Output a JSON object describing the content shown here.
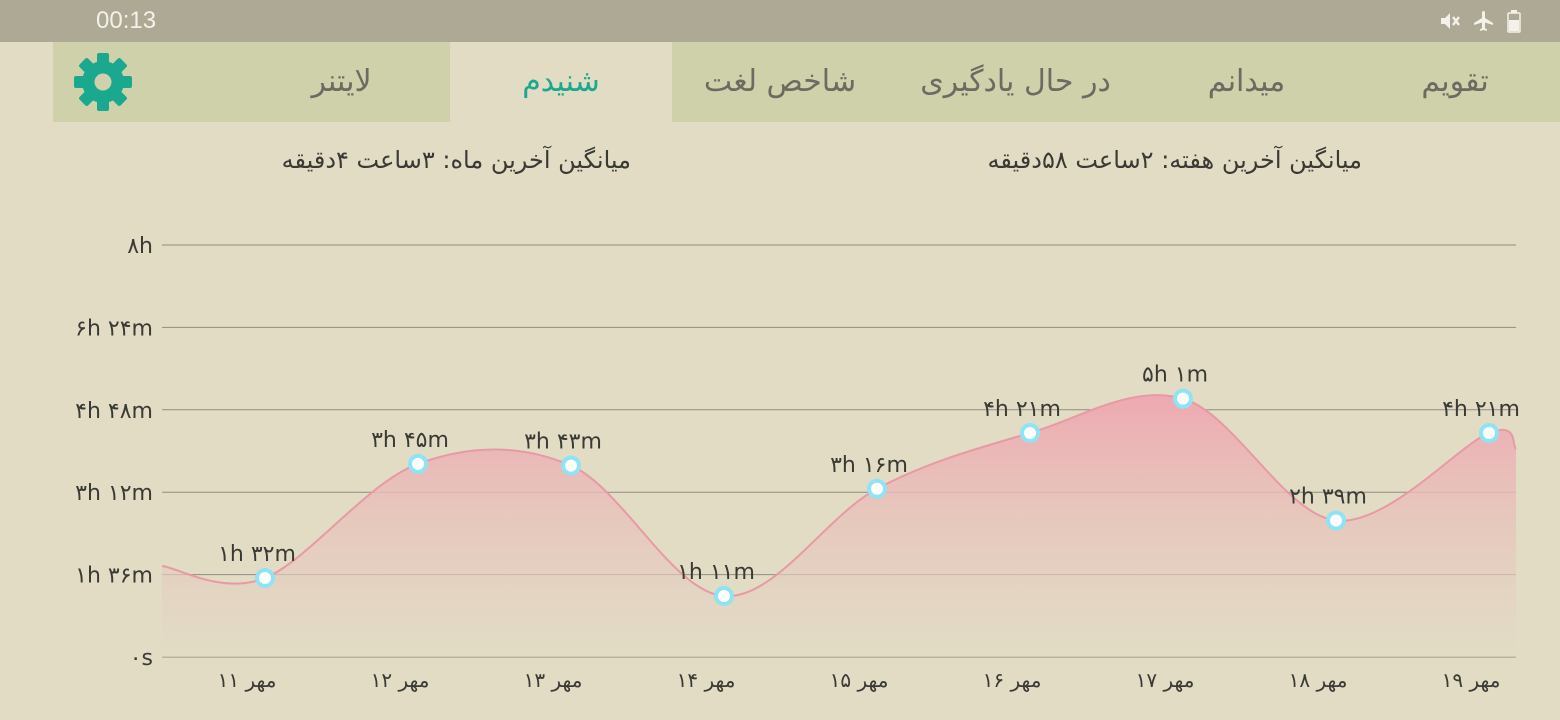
{
  "status_bar": {
    "time": "00:13",
    "icons": [
      "mute-icon",
      "airplane-mode-icon",
      "battery-icon"
    ]
  },
  "tabs": [
    {
      "label": "تقویم",
      "active": false
    },
    {
      "label": "میدانم",
      "active": false
    },
    {
      "label": "در حال یادگیری",
      "active": false
    },
    {
      "label": "شاخص لغت",
      "active": false
    },
    {
      "label": "شنیدم",
      "active": true
    },
    {
      "label": "لایتنر",
      "active": false
    }
  ],
  "settings_icon": "gear-icon",
  "colors": {
    "accent": "#1aa88e",
    "tab_bar": "#cfd1aa",
    "background": "#e2dcc5",
    "area_fill": "#eea9b1",
    "point": "#8fe3f5"
  },
  "averages": {
    "week": "میانگین آخرین هفته: ۲ساعت ۵۸دقیقه",
    "month": "میانگین آخرین ماه: ۳ساعت ۴دقیقه"
  },
  "chart_data": {
    "type": "area",
    "y_unit": "minutes",
    "ylim": [
      0,
      480
    ],
    "y_ticks": [
      {
        "value": 0,
        "label": "۰s"
      },
      {
        "value": 96,
        "label": "۱h ۳۶m"
      },
      {
        "value": 192,
        "label": "۳h ۱۲m"
      },
      {
        "value": 288,
        "label": "۴h ۴۸m"
      },
      {
        "value": 384,
        "label": "۶h ۲۴m"
      },
      {
        "value": 480,
        "label": "۸h"
      }
    ],
    "categories": [
      "۱۱ مهر",
      "۱۲ مهر",
      "۱۳ مهر",
      "۱۴ مهر",
      "۱۵ مهر",
      "۱۶ مهر",
      "۱۷ مهر",
      "۱۸ مهر",
      "۱۹ مهر"
    ],
    "values": [
      92,
      225,
      223,
      71,
      196,
      261,
      301,
      159,
      261
    ],
    "data_labels": [
      "۱h ۳۲m",
      "۳h ۴۵m",
      "۳h ۴۳m",
      "۱h ۱۱m",
      "۳h ۱۶m",
      "۴h ۲۱m",
      "۵h ۱m",
      "۲h ۳۹m",
      "۴h ۲۱m"
    ],
    "grid": true
  }
}
